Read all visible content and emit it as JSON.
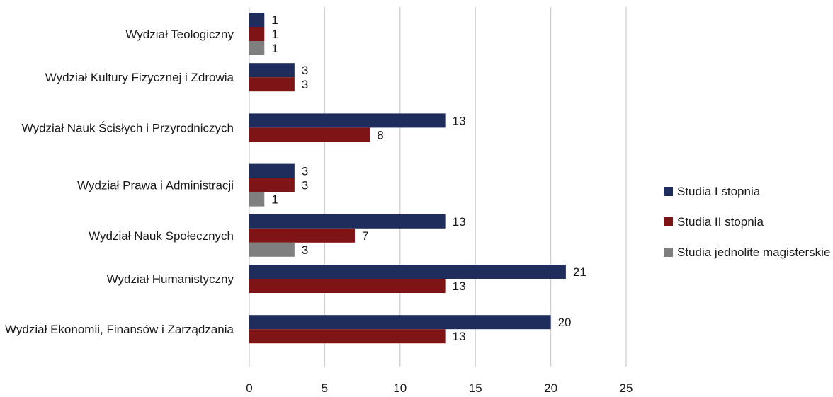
{
  "chart_data": {
    "type": "bar",
    "orientation": "horizontal",
    "categories": [
      "Wydział Teologiczny",
      "Wydział Kultury Fizycznej i Zdrowia",
      "Wydział Nauk Ścisłych i Przyrodniczych",
      "Wydział Prawa i Administracji",
      "Wydział Nauk Społecznych",
      "Wydział Humanistyczny",
      "Wydział Ekonomii, Finansów i Zarządzania"
    ],
    "series": [
      {
        "name": "Studia I stopnia",
        "color": "#1f2d5c",
        "values": [
          1,
          3,
          13,
          3,
          13,
          21,
          20
        ]
      },
      {
        "name": "Studia II stopnia",
        "color": "#7f1416",
        "values": [
          1,
          3,
          8,
          3,
          7,
          13,
          13
        ]
      },
      {
        "name": "Studia jednolite magisterskie",
        "color": "#7f7f7f",
        "values": [
          1,
          null,
          null,
          1,
          3,
          null,
          null
        ]
      }
    ],
    "xlim": [
      0,
      25
    ],
    "xticks": [
      "0",
      "5",
      "10",
      "15",
      "20",
      "25"
    ],
    "grid": true,
    "legend_position": "right",
    "title": "",
    "xlabel": "",
    "ylabel": ""
  }
}
